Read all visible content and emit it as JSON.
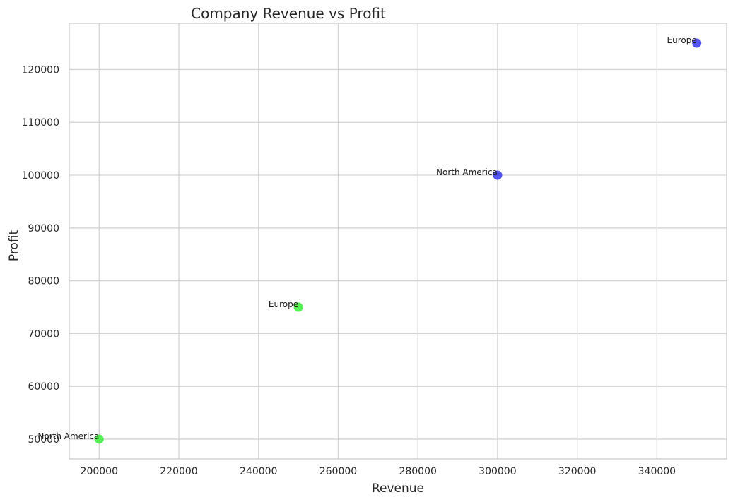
{
  "chart_data": {
    "type": "scatter",
    "title": "Company Revenue vs Profit",
    "xlabel": "Revenue",
    "ylabel": "Profit",
    "xlim": [
      192500,
      357500
    ],
    "ylim": [
      46250,
      128750
    ],
    "xticks": [
      200000,
      220000,
      240000,
      260000,
      280000,
      300000,
      320000,
      340000
    ],
    "yticks": [
      50000,
      60000,
      70000,
      80000,
      90000,
      100000,
      110000,
      120000
    ],
    "grid": true,
    "colors": {
      "green": "#44ee44",
      "blue": "#3f3fee"
    },
    "points": [
      {
        "x": 200000,
        "y": 50000,
        "label": "North America",
        "color": "green"
      },
      {
        "x": 250000,
        "y": 75000,
        "label": "Europe",
        "color": "green"
      },
      {
        "x": 300000,
        "y": 100000,
        "label": "North America",
        "color": "blue"
      },
      {
        "x": 350000,
        "y": 125000,
        "label": "Europe",
        "color": "blue"
      }
    ]
  }
}
